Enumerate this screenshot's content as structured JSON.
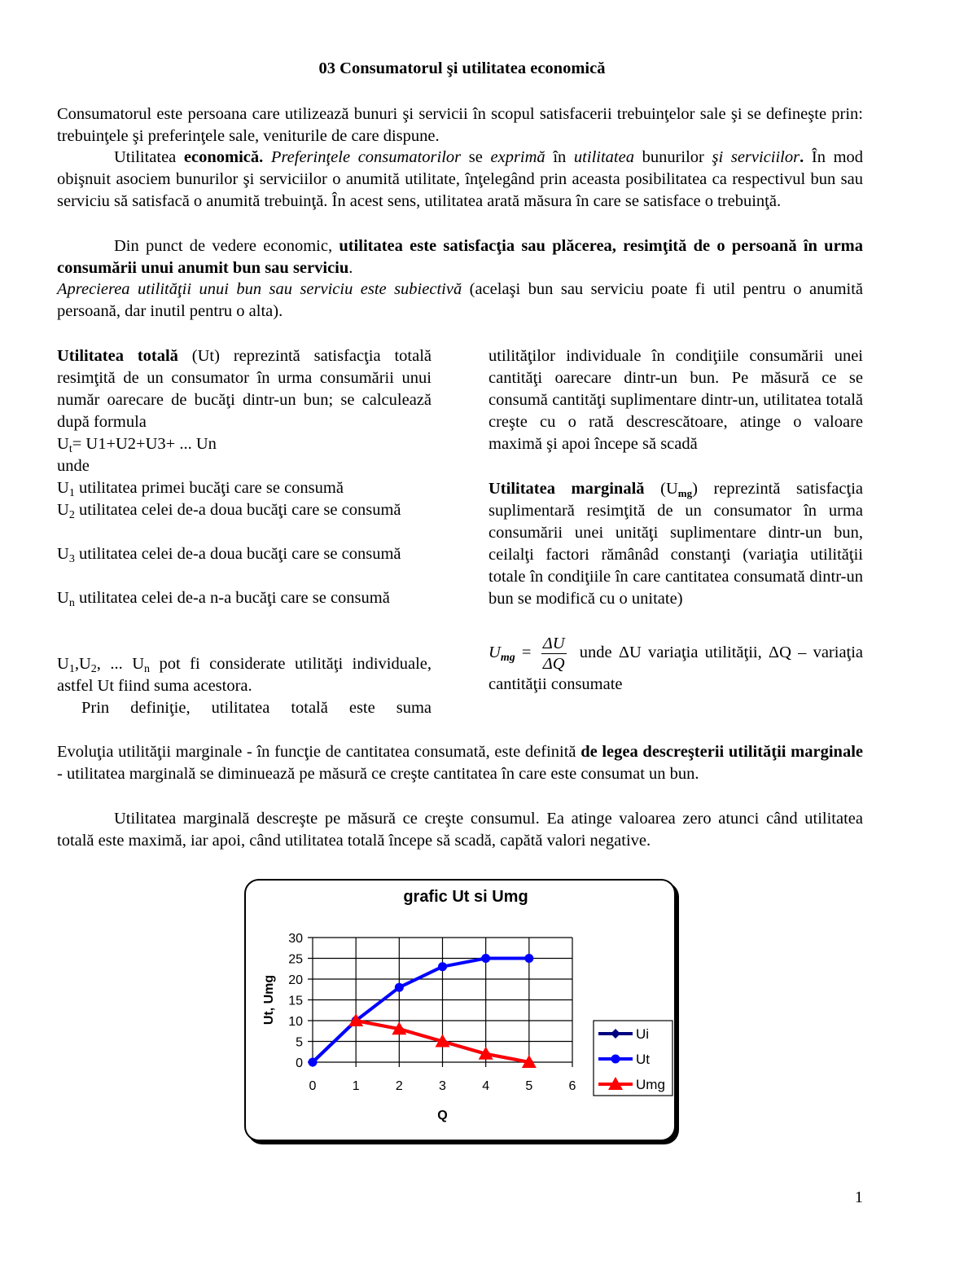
{
  "title": "03 Consumatorul şi utilitatea economică",
  "page_number": "1",
  "paragraphs": {
    "p1": [
      {
        "t": "Consumatorul este persoana care utilizează bunuri şi servicii în  scopul satisfacerii trebuinţelor sale şi  se defineşte prin: trebuinţele şi preferinţele sale, veniturile de care dispune."
      }
    ],
    "p2": [
      {
        "t": "Utilitatea "
      },
      {
        "t": "economică.",
        "s": "b"
      },
      {
        "t": " "
      },
      {
        "t": "Preferinţele consumatorilor",
        "s": "i"
      },
      {
        "t": " se "
      },
      {
        "t": "exprimă",
        "s": "i"
      },
      {
        "t": " în "
      },
      {
        "t": "utilitatea",
        "s": "i"
      },
      {
        "t": " bunurilor "
      },
      {
        "t": "şi serviciilor",
        "s": "i"
      },
      {
        "t": ".",
        "s": "b"
      },
      {
        "t": " În mod obişnuit asociem bunurilor şi serviciilor o anumită utilitate, înţelegând prin aceasta posibilitatea ca respectivul bun sau serviciu să satisfacă o anumită trebuinţă. În acest sens, utilitatea arată măsura în care se satisface o trebuinţă."
      }
    ],
    "p3": [
      {
        "t": "Din punct de vedere economic, "
      },
      {
        "t": "utilitatea este satisfacţia sau plăcerea, resimţită de o persoană în urma consumării unui anumit bun sau serviciu",
        "s": "b"
      },
      {
        "t": "."
      }
    ],
    "p4": [
      {
        "t": "Aprecierea utilităţii unui bun sau serviciu este subiectivă",
        "s": "i"
      },
      {
        "t": " (acelaşi bun sau serviciu poate fi util pentru o anumită persoană, dar inutil pentru o alta)."
      }
    ],
    "l1": [
      {
        "t": "Utilitatea totală",
        "s": "b"
      },
      {
        "t": " (Ut) reprezintă satisfacţia totală resimţită de un consumator în urma consumării unui număr oarecare de bucăţi dintr-un bun; se calculează după formula"
      }
    ],
    "l2": [
      {
        "t": "U"
      },
      {
        "t": "t",
        "s": "sub"
      },
      {
        "t": "= U1+U2+U3+ ... Un"
      }
    ],
    "l3": [
      {
        "t": "unde"
      }
    ],
    "l4": [
      {
        "t": "U"
      },
      {
        "t": "1",
        "s": "sub"
      },
      {
        "t": " utilitatea primei bucăţi care se consumă"
      }
    ],
    "l5": [
      {
        "t": "U"
      },
      {
        "t": "2",
        "s": "sub"
      },
      {
        "t": " utilitatea celei de-a doua bucăţi care se consumă"
      }
    ],
    "l6": [
      {
        "t": "U"
      },
      {
        "t": "3",
        "s": "sub"
      },
      {
        "t": " utilitatea celei de-a doua bucăţi care se consumă"
      }
    ],
    "l7": [
      {
        "t": "U"
      },
      {
        "t": "n",
        "s": "sub"
      },
      {
        "t": " utilitatea celei de-a n-a bucăţi care se consumă"
      }
    ],
    "l8": [
      {
        "t": "U"
      },
      {
        "t": "1",
        "s": "sub"
      },
      {
        "t": ",U"
      },
      {
        "t": "2",
        "s": "sub"
      },
      {
        "t": ", ... U"
      },
      {
        "t": "n",
        "s": "sub"
      },
      {
        "t": " pot fi considerate utilităţi individuale, astfel Ut fiind suma acestora."
      }
    ],
    "l9": [
      {
        "t": "Prin definiţie, utilitatea totală este suma"
      }
    ],
    "r1": [
      {
        "t": "utilităţilor individuale în condiţiile consumării unei cantităţi oarecare dintr-un bun. Pe măsură ce se consumă cantităţi suplimentare dintr-un, utilitatea totală creşte cu o rată descrescătoare, atinge o valoare maximă şi apoi începe să scadă"
      }
    ],
    "r2": [
      {
        "t": "Utilitatea marginală",
        "s": "b"
      },
      {
        "t": " (U"
      },
      {
        "t": "mg",
        "s": "subb"
      },
      {
        "t": ") reprezintă satisfacţia suplimentară resimţită de un consumator în urma consumării unei unităţi suplimentare dintr-un bun, ceilalţi factori rămânâd constanţi (variaţia utilităţii totale în condiţiile în care cantitatea consumată dintr-un bun se modifică cu o unitate)"
      }
    ],
    "r3": [
      {
        "t": " unde ΔU variaţia utilităţii, ΔQ – variaţia cantităţii consumate"
      }
    ],
    "p5": [
      {
        "t": "Evoluţia utilităţii marginale - în funcţie de cantitatea consumată, este definită "
      },
      {
        "t": "de legea descreşterii utilităţii marginale",
        "s": "b"
      },
      {
        "t": " - utilitatea marginală se diminuează pe măsură ce creşte cantitatea în care este consumat un bun."
      }
    ],
    "p6": [
      {
        "t": "Utilitatea marginală descreşte pe măsură ce creşte consumul. Ea atinge valoarea zero atunci când utilitatea totală este maximă, iar apoi, când utilitatea totală începe să scadă, capătă valori negative."
      }
    ]
  },
  "formula": {
    "lhs": "U",
    "lhs_sub": "mg",
    "eq": "=",
    "num": "ΔU",
    "den": "ΔQ"
  },
  "chart_data": {
    "type": "line",
    "title": "grafic Ut si Umg",
    "xlabel": "Q",
    "ylabel": "Ut, Umg",
    "xlim": [
      0,
      6
    ],
    "ylim": [
      0,
      30
    ],
    "xticks": [
      "0",
      "1",
      "2",
      "3",
      "4",
      "5",
      "6"
    ],
    "yticks": [
      "0",
      "5",
      "10",
      "15",
      "20",
      "25",
      "30"
    ],
    "grid": true,
    "legend": "right",
    "series": [
      {
        "name": "Ui",
        "x": [
          0,
          1,
          2,
          3,
          4,
          5
        ],
        "values": [
          0,
          10,
          8,
          5,
          2,
          0
        ],
        "color": "#000080",
        "marker": "diamond"
      },
      {
        "name": "Ut",
        "x": [
          0,
          1,
          2,
          3,
          4,
          5
        ],
        "values": [
          0,
          10,
          18,
          23,
          25,
          25
        ],
        "color": "#0000ff",
        "marker": "circle"
      },
      {
        "name": "Umg",
        "x": [
          1,
          2,
          3,
          4,
          5
        ],
        "values": [
          10,
          8,
          5,
          2,
          0
        ],
        "color": "#ff0000",
        "marker": "triangle"
      }
    ]
  }
}
